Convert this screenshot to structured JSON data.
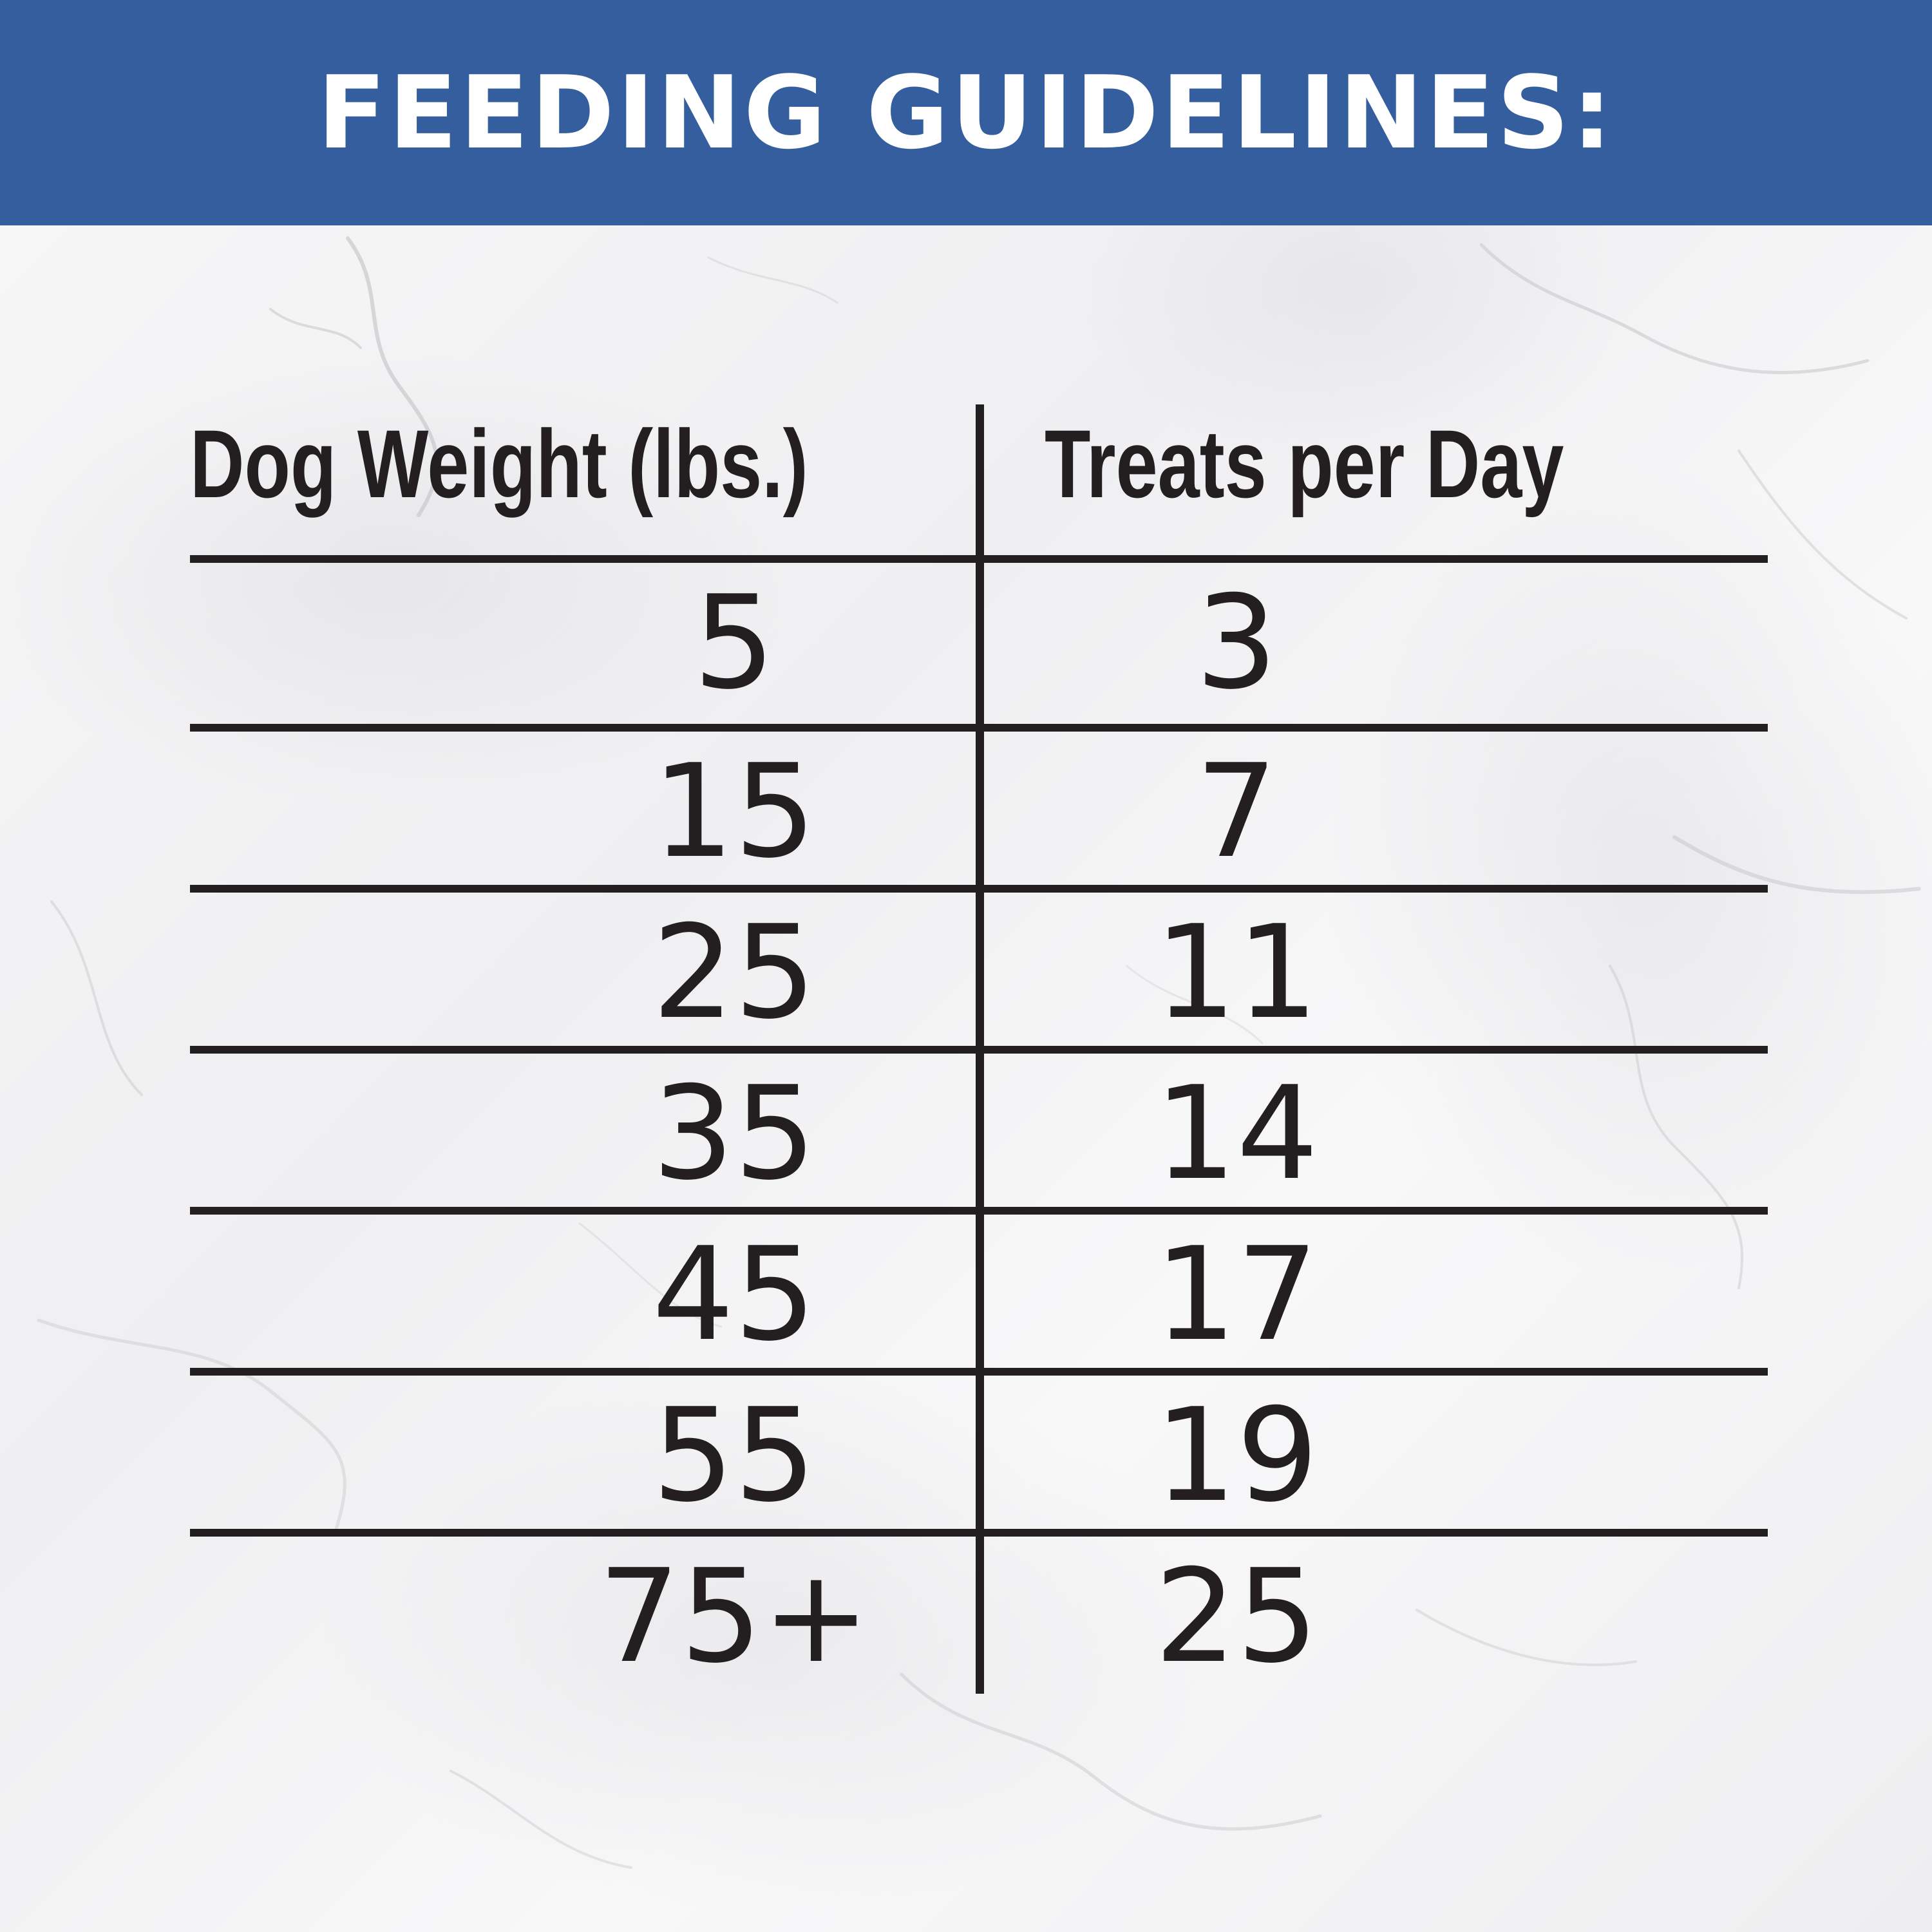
{
  "header": {
    "title": "FEEDING GUIDELINES:",
    "background_color": "#355e9f",
    "text_color": "#ffffff"
  },
  "table": {
    "columns": [
      "Dog Weight (lbs.)",
      "Treats per Day"
    ],
    "rows": [
      {
        "weight": "5",
        "treats": "3"
      },
      {
        "weight": "15",
        "treats": "7"
      },
      {
        "weight": "25",
        "treats": "11"
      },
      {
        "weight": "35",
        "treats": "14"
      },
      {
        "weight": "45",
        "treats": "17"
      },
      {
        "weight": "55",
        "treats": "19"
      },
      {
        "weight": "75+",
        "treats": "25"
      }
    ],
    "line_color": "#231f20"
  },
  "background": {
    "style": "white marble texture"
  }
}
